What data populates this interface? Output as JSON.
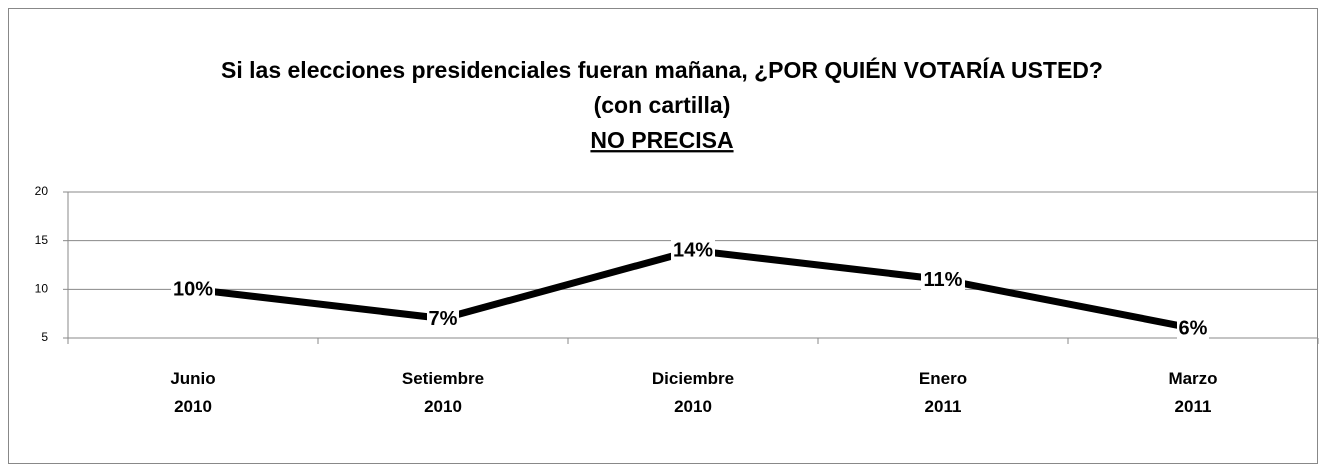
{
  "chart_data": {
    "type": "line",
    "title": "Si las elecciones presidenciales fueran mañana, ¿POR QUIÉN VOTARÍA USTED?",
    "subtitle": "(con cartilla)",
    "subtitle2": "NO PRECISA",
    "categories": [
      "Junio 2010",
      "Setiembre 2010",
      "Diciembre 2010",
      "Enero 2011",
      "Marzo 2011"
    ],
    "values": [
      10,
      7,
      14,
      11,
      6
    ],
    "value_labels": [
      "10%",
      "7%",
      "14%",
      "11%",
      "6%"
    ],
    "color": "#000000",
    "ylim": [
      5,
      20
    ],
    "yticks": [
      5,
      10,
      15,
      20
    ],
    "grid": true
  }
}
